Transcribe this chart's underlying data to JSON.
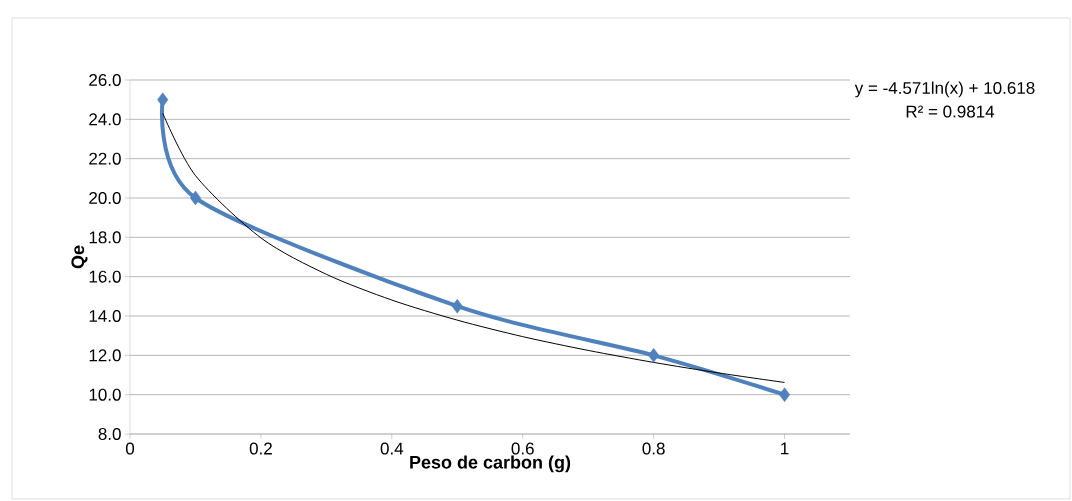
{
  "chart_data": {
    "type": "line",
    "xlabel": "Peso de carbon (g)",
    "ylabel": "Qe",
    "xlim": [
      0,
      1.1
    ],
    "ylim": [
      8,
      26
    ],
    "xticks": [
      0,
      0.2,
      0.4,
      0.6,
      0.8,
      1
    ],
    "yticks": [
      {
        "value": 8,
        "label": "8.0"
      },
      {
        "value": 10,
        "label": "10.0"
      },
      {
        "value": 12,
        "label": "12.0"
      },
      {
        "value": 14,
        "label": "14.0"
      },
      {
        "value": 16,
        "label": "16.0"
      },
      {
        "value": 18,
        "label": "18.0"
      },
      {
        "value": 20,
        "label": "20.0"
      },
      {
        "value": 22,
        "label": "22.0"
      },
      {
        "value": 24,
        "label": "24.0"
      },
      {
        "value": 26,
        "label": "26.0"
      }
    ],
    "grid": "y",
    "series": [
      {
        "color": "#4f81bd",
        "marker": "diamond",
        "x": [
          0.05,
          0.1,
          0.5,
          0.8,
          1
        ],
        "values": [
          25,
          20,
          14.5,
          12,
          10
        ]
      },
      {
        "type": "line",
        "color": "#000000",
        "marker": "none",
        "x": [
          0.05,
          0.1,
          0.2,
          0.3,
          0.4,
          0.5,
          0.6,
          0.7,
          0.8,
          0.9,
          1
        ],
        "values": [
          24.31,
          21.14,
          17.97,
          16.12,
          14.81,
          13.79,
          12.95,
          12.25,
          11.64,
          11.1,
          10.62
        ]
      }
    ],
    "annotations": [
      "y = -4.571ln(x) + 10.618",
      "R² = 0.9814"
    ]
  }
}
